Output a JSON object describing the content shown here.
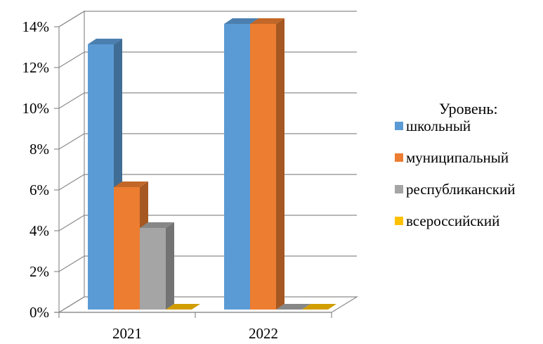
{
  "chart_data": {
    "type": "bar",
    "three_d": true,
    "categories": [
      "2021",
      "2022"
    ],
    "y_ticks": [
      "0%",
      "2%",
      "4%",
      "6%",
      "8%",
      "10%",
      "12%",
      "14%"
    ],
    "ylim": [
      0,
      14
    ],
    "unit": "%",
    "grid": true,
    "legend_title": "Уровень:",
    "legend_position": "right",
    "series": [
      {
        "name": "школьный",
        "color": "#5B9BD5",
        "values": [
          13,
          14
        ]
      },
      {
        "name": "муниципальный",
        "color": "#ED7D31",
        "values": [
          6,
          14
        ]
      },
      {
        "name": "республиканский",
        "color": "#A5A5A5",
        "values": [
          4,
          0
        ]
      },
      {
        "name": "всероссийский",
        "color": "#FFC000",
        "values": [
          0,
          0
        ]
      }
    ]
  }
}
